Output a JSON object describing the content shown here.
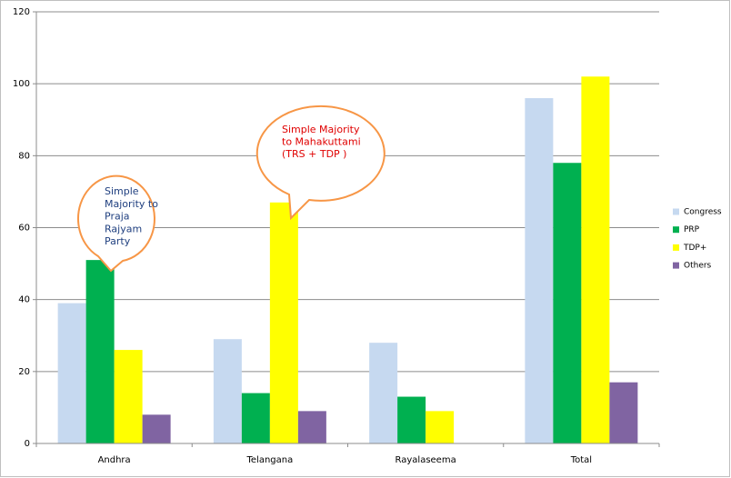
{
  "chart_data": {
    "type": "bar",
    "categories": [
      "Andhra",
      "Telangana",
      "Rayalaseema",
      "Total"
    ],
    "series": [
      {
        "name": "Congress",
        "color": "#c6d9f0",
        "values": [
          39,
          29,
          28,
          96
        ]
      },
      {
        "name": "PRP",
        "color": "#00b050",
        "values": [
          51,
          14,
          13,
          78
        ]
      },
      {
        "name": "TDP+",
        "color": "#ffff00",
        "values": [
          26,
          67,
          9,
          102
        ]
      },
      {
        "name": "Others",
        "color": "#8064a2",
        "values": [
          8,
          9,
          0,
          17
        ]
      }
    ],
    "ylim": [
      0,
      120
    ],
    "yticks": [
      0,
      20,
      40,
      60,
      80,
      100,
      120
    ],
    "grid": true,
    "legend": "right",
    "annotations": [
      {
        "lines": [
          "Simple",
          "Majority to",
          "Praja",
          "Rajyam",
          "Party"
        ],
        "color": "#1f3f7f"
      },
      {
        "lines": [
          "Simple Majority",
          "to Mahakuttami",
          "(TRS + TDP )"
        ],
        "color": "#e00000"
      }
    ]
  }
}
